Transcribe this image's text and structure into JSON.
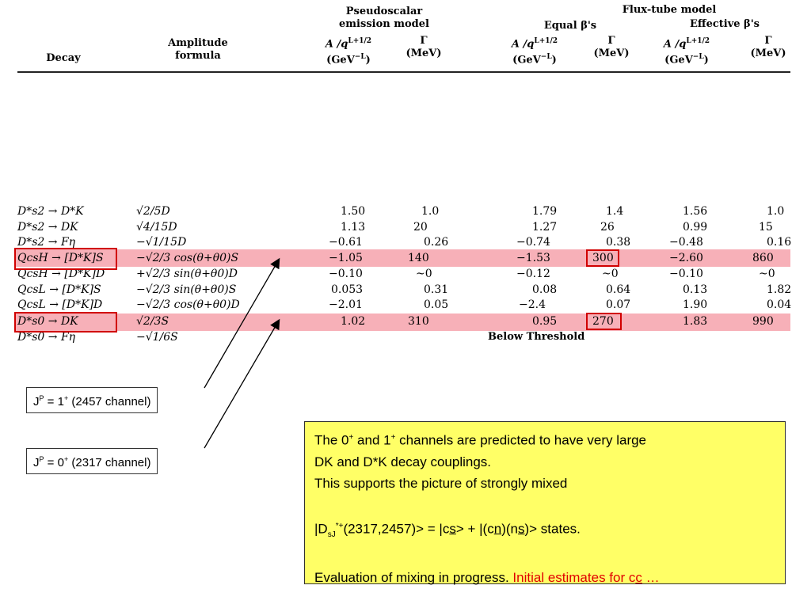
{
  "header": {
    "decay": "Decay",
    "amplitude": [
      "Amplitude",
      "formula"
    ],
    "pseudoscalar": [
      "Pseudoscalar",
      "emission  model"
    ],
    "fluxtube": "Flux-tube  model",
    "equal": "Equal  β's",
    "effective": "Effective  β's",
    "unit_a": "A /q",
    "unit_a_exp": "L+1/2",
    "unit_a2": "(GeV",
    "unit_a2_exp": "−L",
    "unit_a2_end": ")",
    "gamma": "Γ",
    "mev": "(MeV)"
  },
  "rows": [
    {
      "decay": "D*s2 → D*K",
      "amp": "√2/5D",
      "pA": "1.50",
      "pG": "1.0",
      "eA": "1.79",
      "eG": "1.4",
      "fA": "1.56",
      "fG": "1.0"
    },
    {
      "decay": "D*s2 → DK",
      "amp": "√4/15D",
      "pA": "1.13",
      "pG": "20",
      "eA": "1.27",
      "eG": "26",
      "fA": "0.99",
      "fG": "15"
    },
    {
      "decay": "D*s2 → Fη",
      "amp": "−√1/15D",
      "pA": "−0.61",
      "pG": "0.26",
      "eA": "−0.74",
      "eG": "0.38",
      "fA": "−0.48",
      "fG": "0.16"
    },
    {
      "decay": "QcsH → [D*K]S",
      "amp": "−√2/3 cos(θ+θ0)S",
      "pA": "−1.05",
      "pG": "140",
      "eA": "−1.53",
      "eG": "300",
      "fA": "−2.60",
      "fG": "860"
    },
    {
      "decay": "QcsH → [D*K]D",
      "amp": "+√2/3 sin(θ+θ0)D",
      "pA": "−0.10",
      "pG": "~0",
      "eA": "−0.12",
      "eG": "~0",
      "fA": "−0.10",
      "fG": "~0"
    },
    {
      "decay": "QcsL → [D*K]S",
      "amp": "−√2/3 sin(θ+θ0)S",
      "pA": "0.053",
      "pG": "0.31",
      "eA": "0.08",
      "eG": "0.64",
      "fA": "0.13",
      "fG": "1.82"
    },
    {
      "decay": "QcsL → [D*K]D",
      "amp": "−√2/3 cos(θ+θ0)D",
      "pA": "−2.01",
      "pG": "0.05",
      "eA": "−2.4",
      "eG": "0.07",
      "fA": "1.90",
      "fG": "0.04"
    },
    {
      "decay": "D*s0 → DK",
      "amp": "√2/3S",
      "pA": "1.02",
      "pG": "310",
      "eA": "0.95",
      "eG": "270",
      "fA": "1.83",
      "fG": "990"
    },
    {
      "decay": "D*s0 → Fη",
      "amp": "−√1/6S",
      "pA": "",
      "pG": "",
      "eA": "",
      "eG": "",
      "fA": "",
      "fG": ""
    }
  ],
  "below_threshold": "Below Threshold",
  "labels": {
    "l1_pre": "J",
    "l1_sup1": "P",
    "l1_mid": " = 1",
    "l1_sup2": "+",
    "l1_post": "  (2457 channel)",
    "l2_pre": "J",
    "l2_sup1": "P",
    "l2_mid": " = 0",
    "l2_sup2": "+",
    "l2_post": "  (2317 channel)"
  },
  "note": {
    "line1_a": "The 0",
    "line1_sup1": "+",
    "line1_b": " and 1",
    "line1_sup2": "+",
    "line1_c": " channels are predicted to have very large",
    "line2": "DK and D*K decay couplings.",
    "line3": "This supports the picture of strongly mixed",
    "line4_a": "|D",
    "line4_sub": "sJ",
    "line4_sup": "*+",
    "line4_b": "(2317,2457)>  =  |c",
    "line4_s1": "s",
    "line4_c": "> + |(c",
    "line4_n1": "n",
    "line4_d": ")(n",
    "line4_s2": "s",
    "line4_e": ")>  states.",
    "line5_a": "Evaluation of mixing in progress. ",
    "line5_red_a": "Initial estimates for c",
    "line5_red_c": "c",
    "line5_red_b": " …"
  },
  "colors": {
    "highlight": "#f7b0b8",
    "box": "#d10000",
    "note_bg": "#ffff66",
    "red_text": "#e00000"
  }
}
